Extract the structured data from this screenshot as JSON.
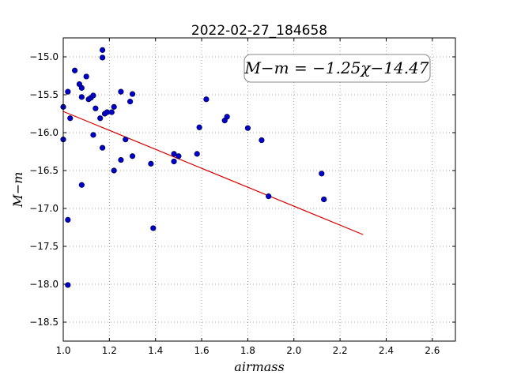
{
  "chart_data": {
    "type": "scatter",
    "title": "2022-02-27_184658",
    "xlabel": "airmass",
    "ylabel": "M−m",
    "xlim": [
      1.0,
      2.7
    ],
    "ylim": [
      -18.75,
      -14.75
    ],
    "y_inverted": true,
    "x_ticks": [
      1.0,
      1.2,
      1.4,
      1.6,
      1.8,
      2.0,
      2.2,
      2.4,
      2.6
    ],
    "x_tick_labels": [
      "1.0",
      "1.2",
      "1.4",
      "1.6",
      "1.8",
      "2.0",
      "2.2",
      "2.4",
      "2.6"
    ],
    "y_ticks": [
      -15.0,
      -15.5,
      -16.0,
      -16.5,
      -17.0,
      -17.5,
      -18.0,
      -18.5
    ],
    "y_tick_labels": [
      "−15.0",
      "−15.5",
      "−16.0",
      "−16.5",
      "−17.0",
      "−17.5",
      "−18.0",
      "−18.5"
    ],
    "grid": true,
    "annotation": "M−m = −1.25χ−14.47",
    "annotation_position": "top-right",
    "colors": {
      "points": "#0000cc",
      "fit": "#dd0000"
    },
    "fit": {
      "slope": -1.25,
      "intercept": -14.47,
      "x_range": [
        1.0,
        2.3
      ]
    },
    "points": [
      {
        "x": 1.0,
        "y": -15.66
      },
      {
        "x": 1.0,
        "y": -16.09
      },
      {
        "x": 1.02,
        "y": -17.15
      },
      {
        "x": 1.02,
        "y": -18.01
      },
      {
        "x": 1.02,
        "y": -15.46
      },
      {
        "x": 1.03,
        "y": -15.81
      },
      {
        "x": 1.05,
        "y": -15.18
      },
      {
        "x": 1.07,
        "y": -15.36
      },
      {
        "x": 1.08,
        "y": -15.41
      },
      {
        "x": 1.08,
        "y": -16.69
      },
      {
        "x": 1.08,
        "y": -15.53
      },
      {
        "x": 1.1,
        "y": -15.26
      },
      {
        "x": 1.11,
        "y": -15.56
      },
      {
        "x": 1.12,
        "y": -15.54
      },
      {
        "x": 1.13,
        "y": -16.03
      },
      {
        "x": 1.13,
        "y": -15.51
      },
      {
        "x": 1.14,
        "y": -15.68
      },
      {
        "x": 1.16,
        "y": -15.81
      },
      {
        "x": 1.17,
        "y": -14.91
      },
      {
        "x": 1.17,
        "y": -15.01
      },
      {
        "x": 1.17,
        "y": -16.2
      },
      {
        "x": 1.18,
        "y": -15.75
      },
      {
        "x": 1.19,
        "y": -15.73
      },
      {
        "x": 1.21,
        "y": -15.73
      },
      {
        "x": 1.22,
        "y": -16.5
      },
      {
        "x": 1.22,
        "y": -15.66
      },
      {
        "x": 1.25,
        "y": -15.46
      },
      {
        "x": 1.25,
        "y": -16.36
      },
      {
        "x": 1.27,
        "y": -16.09
      },
      {
        "x": 1.29,
        "y": -15.59
      },
      {
        "x": 1.3,
        "y": -16.31
      },
      {
        "x": 1.3,
        "y": -15.49
      },
      {
        "x": 1.38,
        "y": -16.41
      },
      {
        "x": 1.39,
        "y": -17.26
      },
      {
        "x": 1.48,
        "y": -16.28
      },
      {
        "x": 1.48,
        "y": -16.38
      },
      {
        "x": 1.5,
        "y": -16.31
      },
      {
        "x": 1.58,
        "y": -16.28
      },
      {
        "x": 1.59,
        "y": -15.93
      },
      {
        "x": 1.62,
        "y": -15.56
      },
      {
        "x": 1.7,
        "y": -15.84
      },
      {
        "x": 1.71,
        "y": -15.79
      },
      {
        "x": 1.8,
        "y": -15.94
      },
      {
        "x": 1.86,
        "y": -16.1
      },
      {
        "x": 1.89,
        "y": -16.84
      },
      {
        "x": 2.12,
        "y": -16.54
      },
      {
        "x": 2.13,
        "y": -16.88
      }
    ]
  }
}
